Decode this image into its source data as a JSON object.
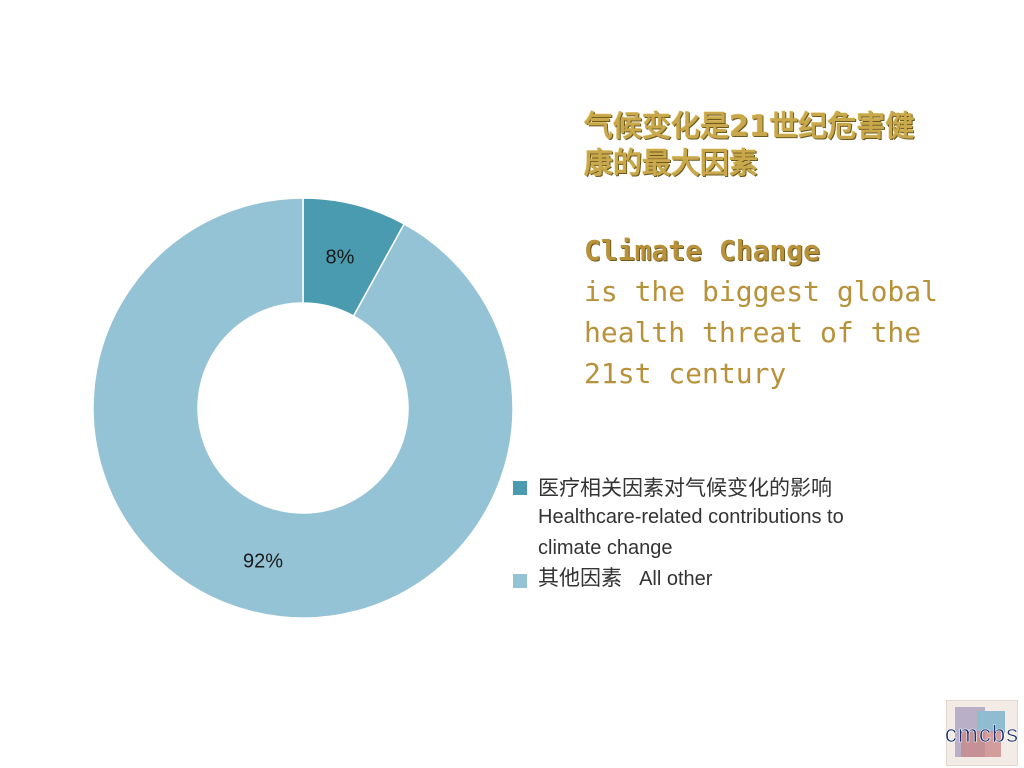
{
  "title": {
    "zh_lines": [
      "气候变化是21世纪危害健",
      "康的最大因素"
    ],
    "en_lead": "Climate Change",
    "en_lines": [
      "is the biggest global",
      "health threat of the",
      "21st century"
    ]
  },
  "chart_data": {
    "type": "pie",
    "subtype": "donut",
    "categories": [
      "医疗相关因素对气候变化的影响 Healthcare-related contributions to climate change",
      "其他因素 All other"
    ],
    "values": [
      8,
      92
    ],
    "labels": [
      "8%",
      "92%"
    ],
    "colors": [
      "#4a9bb0",
      "#95c3d6"
    ],
    "legend_position": "right"
  },
  "legend": [
    {
      "zh": "医疗相关因素对气候变化的影响",
      "en": "Healthcare-related contributions to climate change",
      "en_lines": [
        "Healthcare-related contributions to",
        "climate change"
      ],
      "color": "#4a9bb0"
    },
    {
      "zh": "其他因素",
      "en": "All other",
      "color": "#95c3d6"
    }
  ],
  "logo": {
    "text": "cmcbs"
  }
}
